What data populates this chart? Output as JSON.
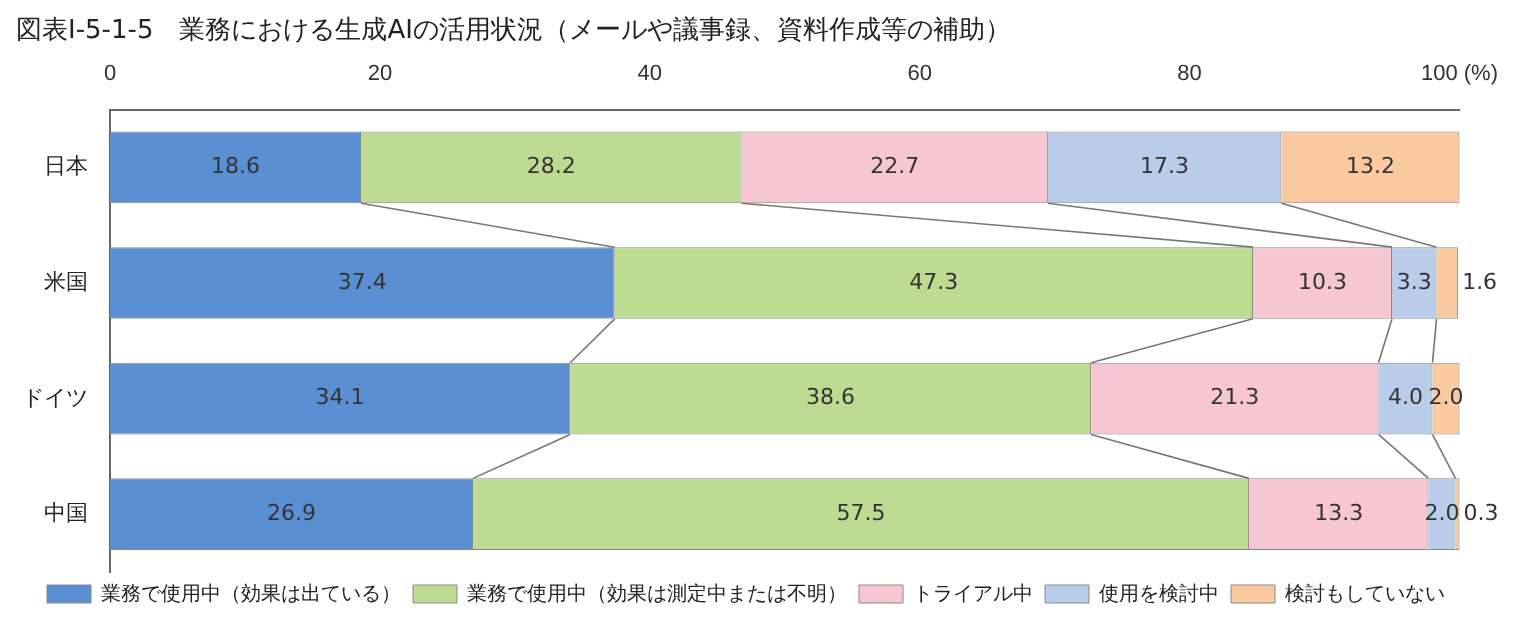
{
  "chart_data": {
    "type": "bar",
    "orientation": "horizontal",
    "stacked": true,
    "title": "図表Ⅰ-5-1-5　業務における生成AIの活用状況（メールや議事録、資料作成等の補助）",
    "categories": [
      "日本",
      "米国",
      "ドイツ",
      "中国"
    ],
    "series": [
      {
        "name": "業務で使用中（効果は出ている）",
        "color": "#5b8fd3",
        "values": [
          18.6,
          37.4,
          34.1,
          26.9
        ],
        "value_labels": [
          "18.6",
          "37.4",
          "34.1",
          "26.9"
        ]
      },
      {
        "name": "業務で使用中（効果は測定中または不明）",
        "color": "#bddc92",
        "values": [
          28.2,
          47.3,
          38.6,
          57.5
        ],
        "value_labels": [
          "28.2",
          "47.3",
          "38.6",
          "57.5"
        ]
      },
      {
        "name": "トライアル中",
        "color": "#f7c6d3",
        "values": [
          22.7,
          10.3,
          21.3,
          13.3
        ],
        "value_labels": [
          "22.7",
          "10.3",
          "21.3",
          "13.3"
        ]
      },
      {
        "name": "使用を検討中",
        "color": "#b9cdea",
        "values": [
          17.3,
          3.3,
          4.0,
          2.0
        ],
        "value_labels": [
          "17.3",
          "3.3",
          "4.0",
          "2.0"
        ]
      },
      {
        "name": "検討もしていない",
        "color": "#f9c9a0",
        "values": [
          13.2,
          1.6,
          2.0,
          0.3
        ],
        "value_labels": [
          "13.2",
          "1.6",
          "2.0",
          "0.3"
        ]
      }
    ],
    "xlim": [
      0,
      100
    ],
    "xticks": [
      0,
      20,
      40,
      60,
      80,
      {
        "value": 100,
        "label": "100 (%)"
      }
    ],
    "legend": "bottom",
    "grid": false
  }
}
